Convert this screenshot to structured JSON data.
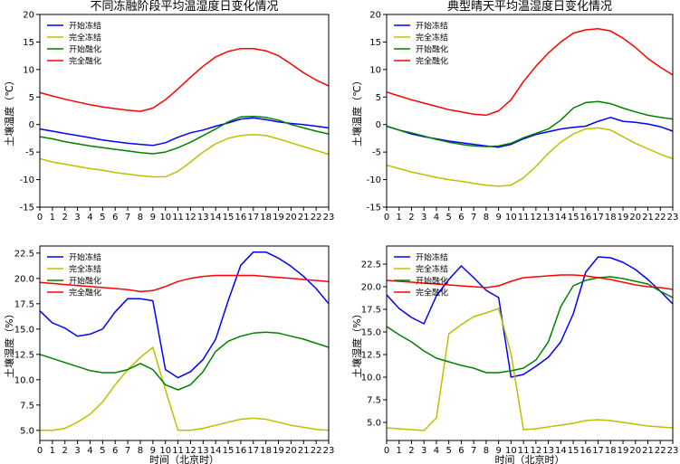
{
  "chart_data": [
    {
      "type": "line",
      "title": "不同冻融阶段平均温湿度日变化情况",
      "xlabel": "",
      "ylabel": "土壤温度（℃）",
      "xlim": [
        0,
        23
      ],
      "ylim": [
        -15,
        20
      ],
      "yticks": [
        -15,
        -10,
        -5,
        0,
        5,
        10,
        15,
        20
      ],
      "x": [
        0,
        1,
        2,
        3,
        4,
        5,
        6,
        7,
        8,
        9,
        10,
        11,
        12,
        13,
        14,
        15,
        16,
        17,
        18,
        19,
        20,
        21,
        22,
        23
      ],
      "legend_position": "top-left",
      "series": [
        {
          "name": "开始冻结",
          "color": "#0000ff",
          "values": [
            -0.8,
            -1.2,
            -1.6,
            -2.0,
            -2.4,
            -2.8,
            -3.1,
            -3.4,
            -3.6,
            -3.8,
            -3.3,
            -2.3,
            -1.5,
            -1.0,
            -0.3,
            0.3,
            1.0,
            1.2,
            0.9,
            0.5,
            0.2,
            0.0,
            -0.3,
            -0.6
          ]
        },
        {
          "name": "完全冻结",
          "color": "#bfbf00",
          "values": [
            -6.2,
            -6.8,
            -7.2,
            -7.6,
            -8.0,
            -8.3,
            -8.7,
            -9.0,
            -9.3,
            -9.5,
            -9.5,
            -8.5,
            -6.8,
            -5.0,
            -3.5,
            -2.5,
            -2.0,
            -1.8,
            -2.0,
            -2.6,
            -3.3,
            -4.0,
            -4.7,
            -5.4
          ]
        },
        {
          "name": "开始融化",
          "color": "#008000",
          "values": [
            -2.2,
            -2.6,
            -3.1,
            -3.5,
            -3.9,
            -4.2,
            -4.5,
            -4.8,
            -5.1,
            -5.3,
            -5.0,
            -4.2,
            -3.2,
            -2.0,
            -0.8,
            0.5,
            1.4,
            1.5,
            1.3,
            0.8,
            0.0,
            -0.6,
            -1.2,
            -1.7
          ]
        },
        {
          "name": "完全融化",
          "color": "#ff0000",
          "values": [
            5.8,
            5.2,
            4.6,
            4.1,
            3.6,
            3.2,
            2.9,
            2.6,
            2.4,
            3.0,
            4.5,
            6.5,
            8.6,
            10.6,
            12.3,
            13.3,
            13.8,
            13.8,
            13.4,
            12.5,
            11.0,
            9.4,
            8.1,
            7.0
          ]
        }
      ]
    },
    {
      "type": "line",
      "title": "典型晴天平均温湿度日变化情况",
      "xlabel": "",
      "ylabel": "土壤温度（℃）",
      "xlim": [
        0,
        23
      ],
      "ylim": [
        -15,
        20
      ],
      "yticks": [
        -15,
        -10,
        -5,
        0,
        5,
        10,
        15,
        20
      ],
      "x": [
        0,
        1,
        2,
        3,
        4,
        5,
        6,
        7,
        8,
        9,
        10,
        11,
        12,
        13,
        14,
        15,
        16,
        17,
        18,
        19,
        20,
        21,
        22,
        23
      ],
      "legend_position": "top-left",
      "series": [
        {
          "name": "开始冻结",
          "color": "#0000ff",
          "values": [
            -0.3,
            -1.0,
            -1.7,
            -2.2,
            -2.6,
            -3.0,
            -3.3,
            -3.6,
            -3.9,
            -4.1,
            -3.6,
            -2.6,
            -1.8,
            -1.3,
            -0.8,
            -0.5,
            -0.3,
            0.6,
            1.3,
            0.6,
            0.4,
            0.1,
            -0.4,
            -1.2
          ]
        },
        {
          "name": "完全冻结",
          "color": "#bfbf00",
          "values": [
            -7.4,
            -8.0,
            -8.6,
            -9.1,
            -9.6,
            -10.0,
            -10.3,
            -10.7,
            -11.0,
            -11.2,
            -11.0,
            -9.7,
            -7.6,
            -5.2,
            -3.2,
            -1.7,
            -0.8,
            -0.6,
            -1.0,
            -2.2,
            -3.4,
            -4.4,
            -5.4,
            -6.2
          ]
        },
        {
          "name": "开始融化",
          "color": "#008000",
          "values": [
            -0.3,
            -1.0,
            -1.5,
            -2.1,
            -2.7,
            -3.2,
            -3.6,
            -3.9,
            -4.0,
            -3.9,
            -3.4,
            -2.4,
            -1.6,
            -0.8,
            0.8,
            3.0,
            4.0,
            4.2,
            3.8,
            3.0,
            2.3,
            1.7,
            1.3,
            1.0
          ]
        },
        {
          "name": "完全融化",
          "color": "#ff0000",
          "values": [
            5.9,
            5.2,
            4.5,
            3.9,
            3.3,
            2.7,
            2.3,
            1.9,
            1.7,
            2.5,
            4.5,
            7.8,
            10.6,
            13.0,
            15.0,
            16.6,
            17.2,
            17.4,
            17.0,
            15.7,
            14.0,
            12.0,
            10.4,
            9.0
          ]
        }
      ]
    },
    {
      "type": "line",
      "title": "",
      "xlabel": "时间（北京时）",
      "ylabel": "土壤湿度（%）",
      "xlim": [
        0,
        23
      ],
      "ylim": [
        4,
        23.2
      ],
      "yticks": [
        5.0,
        7.5,
        10.0,
        12.5,
        15.0,
        17.5,
        20.0,
        22.5
      ],
      "x": [
        0,
        1,
        2,
        3,
        4,
        5,
        6,
        7,
        8,
        9,
        10,
        11,
        12,
        13,
        14,
        15,
        16,
        17,
        18,
        19,
        20,
        21,
        22,
        23
      ],
      "legend_position": "top-left",
      "series": [
        {
          "name": "开始冻结",
          "color": "#0000ff",
          "values": [
            16.8,
            15.6,
            15.1,
            14.3,
            14.5,
            15.0,
            16.7,
            18.0,
            18.0,
            17.8,
            11.0,
            10.2,
            10.8,
            12.0,
            14.0,
            17.8,
            21.3,
            22.6,
            22.6,
            22.0,
            21.2,
            20.2,
            19.0,
            17.5
          ]
        },
        {
          "name": "完全冻结",
          "color": "#bfbf00",
          "values": [
            5.0,
            5.0,
            5.2,
            5.8,
            6.6,
            7.8,
            9.5,
            11.0,
            12.2,
            13.2,
            9.0,
            5.0,
            5.0,
            5.2,
            5.5,
            5.8,
            6.1,
            6.2,
            6.1,
            5.8,
            5.5,
            5.3,
            5.1,
            5.0
          ]
        },
        {
          "name": "开始融化",
          "color": "#008000",
          "values": [
            12.5,
            12.1,
            11.7,
            11.3,
            10.9,
            10.7,
            10.7,
            11.0,
            11.6,
            11.0,
            9.5,
            9.0,
            9.5,
            10.8,
            12.8,
            13.8,
            14.3,
            14.6,
            14.7,
            14.6,
            14.3,
            14.0,
            13.6,
            13.2
          ]
        },
        {
          "name": "完全融化",
          "color": "#ff0000",
          "values": [
            19.6,
            19.5,
            19.4,
            19.3,
            19.2,
            19.1,
            19.0,
            18.9,
            18.7,
            18.8,
            19.2,
            19.7,
            20.0,
            20.2,
            20.3,
            20.3,
            20.3,
            20.3,
            20.2,
            20.1,
            20.0,
            19.9,
            19.8,
            19.7
          ]
        }
      ]
    },
    {
      "type": "line",
      "title": "",
      "xlabel": "时间（北京时）",
      "ylabel": "土壤湿度（%）",
      "xlim": [
        0,
        23
      ],
      "ylim": [
        3,
        24.5
      ],
      "yticks": [
        5.0,
        7.5,
        10.0,
        12.5,
        15.0,
        17.5,
        20.0,
        22.5
      ],
      "x": [
        0,
        1,
        2,
        3,
        4,
        5,
        6,
        7,
        8,
        9,
        10,
        11,
        12,
        13,
        14,
        15,
        16,
        17,
        18,
        19,
        20,
        21,
        22,
        23
      ],
      "legend_position": "top-left",
      "series": [
        {
          "name": "开始冻结",
          "color": "#0000ff",
          "values": [
            19.1,
            17.6,
            16.6,
            15.9,
            19.0,
            20.8,
            22.3,
            21.0,
            19.6,
            18.8,
            10.0,
            10.3,
            11.2,
            12.2,
            13.9,
            17.0,
            21.6,
            23.3,
            23.2,
            22.7,
            21.9,
            20.8,
            19.5,
            18.1
          ]
        },
        {
          "name": "完全冻结",
          "color": "#bfbf00",
          "values": [
            4.4,
            4.3,
            4.2,
            4.1,
            5.5,
            14.8,
            15.8,
            16.7,
            17.1,
            17.6,
            12.6,
            4.2,
            4.3,
            4.5,
            4.7,
            4.9,
            5.2,
            5.3,
            5.2,
            5.0,
            4.8,
            4.6,
            4.5,
            4.4
          ]
        },
        {
          "name": "开始融化",
          "color": "#008000",
          "values": [
            15.6,
            14.7,
            13.9,
            12.9,
            12.1,
            11.7,
            11.3,
            11.0,
            10.5,
            10.5,
            10.7,
            11.0,
            11.9,
            13.9,
            17.8,
            20.1,
            20.7,
            21.0,
            21.1,
            20.9,
            20.6,
            20.3,
            19.5,
            18.8
          ]
        },
        {
          "name": "完全融化",
          "color": "#ff0000",
          "values": [
            20.7,
            20.6,
            20.5,
            20.4,
            20.3,
            20.2,
            20.1,
            20.0,
            19.9,
            20.1,
            20.6,
            21.0,
            21.1,
            21.2,
            21.3,
            21.3,
            21.2,
            21.0,
            20.8,
            20.5,
            20.2,
            20.0,
            19.9,
            19.7
          ]
        }
      ]
    }
  ]
}
